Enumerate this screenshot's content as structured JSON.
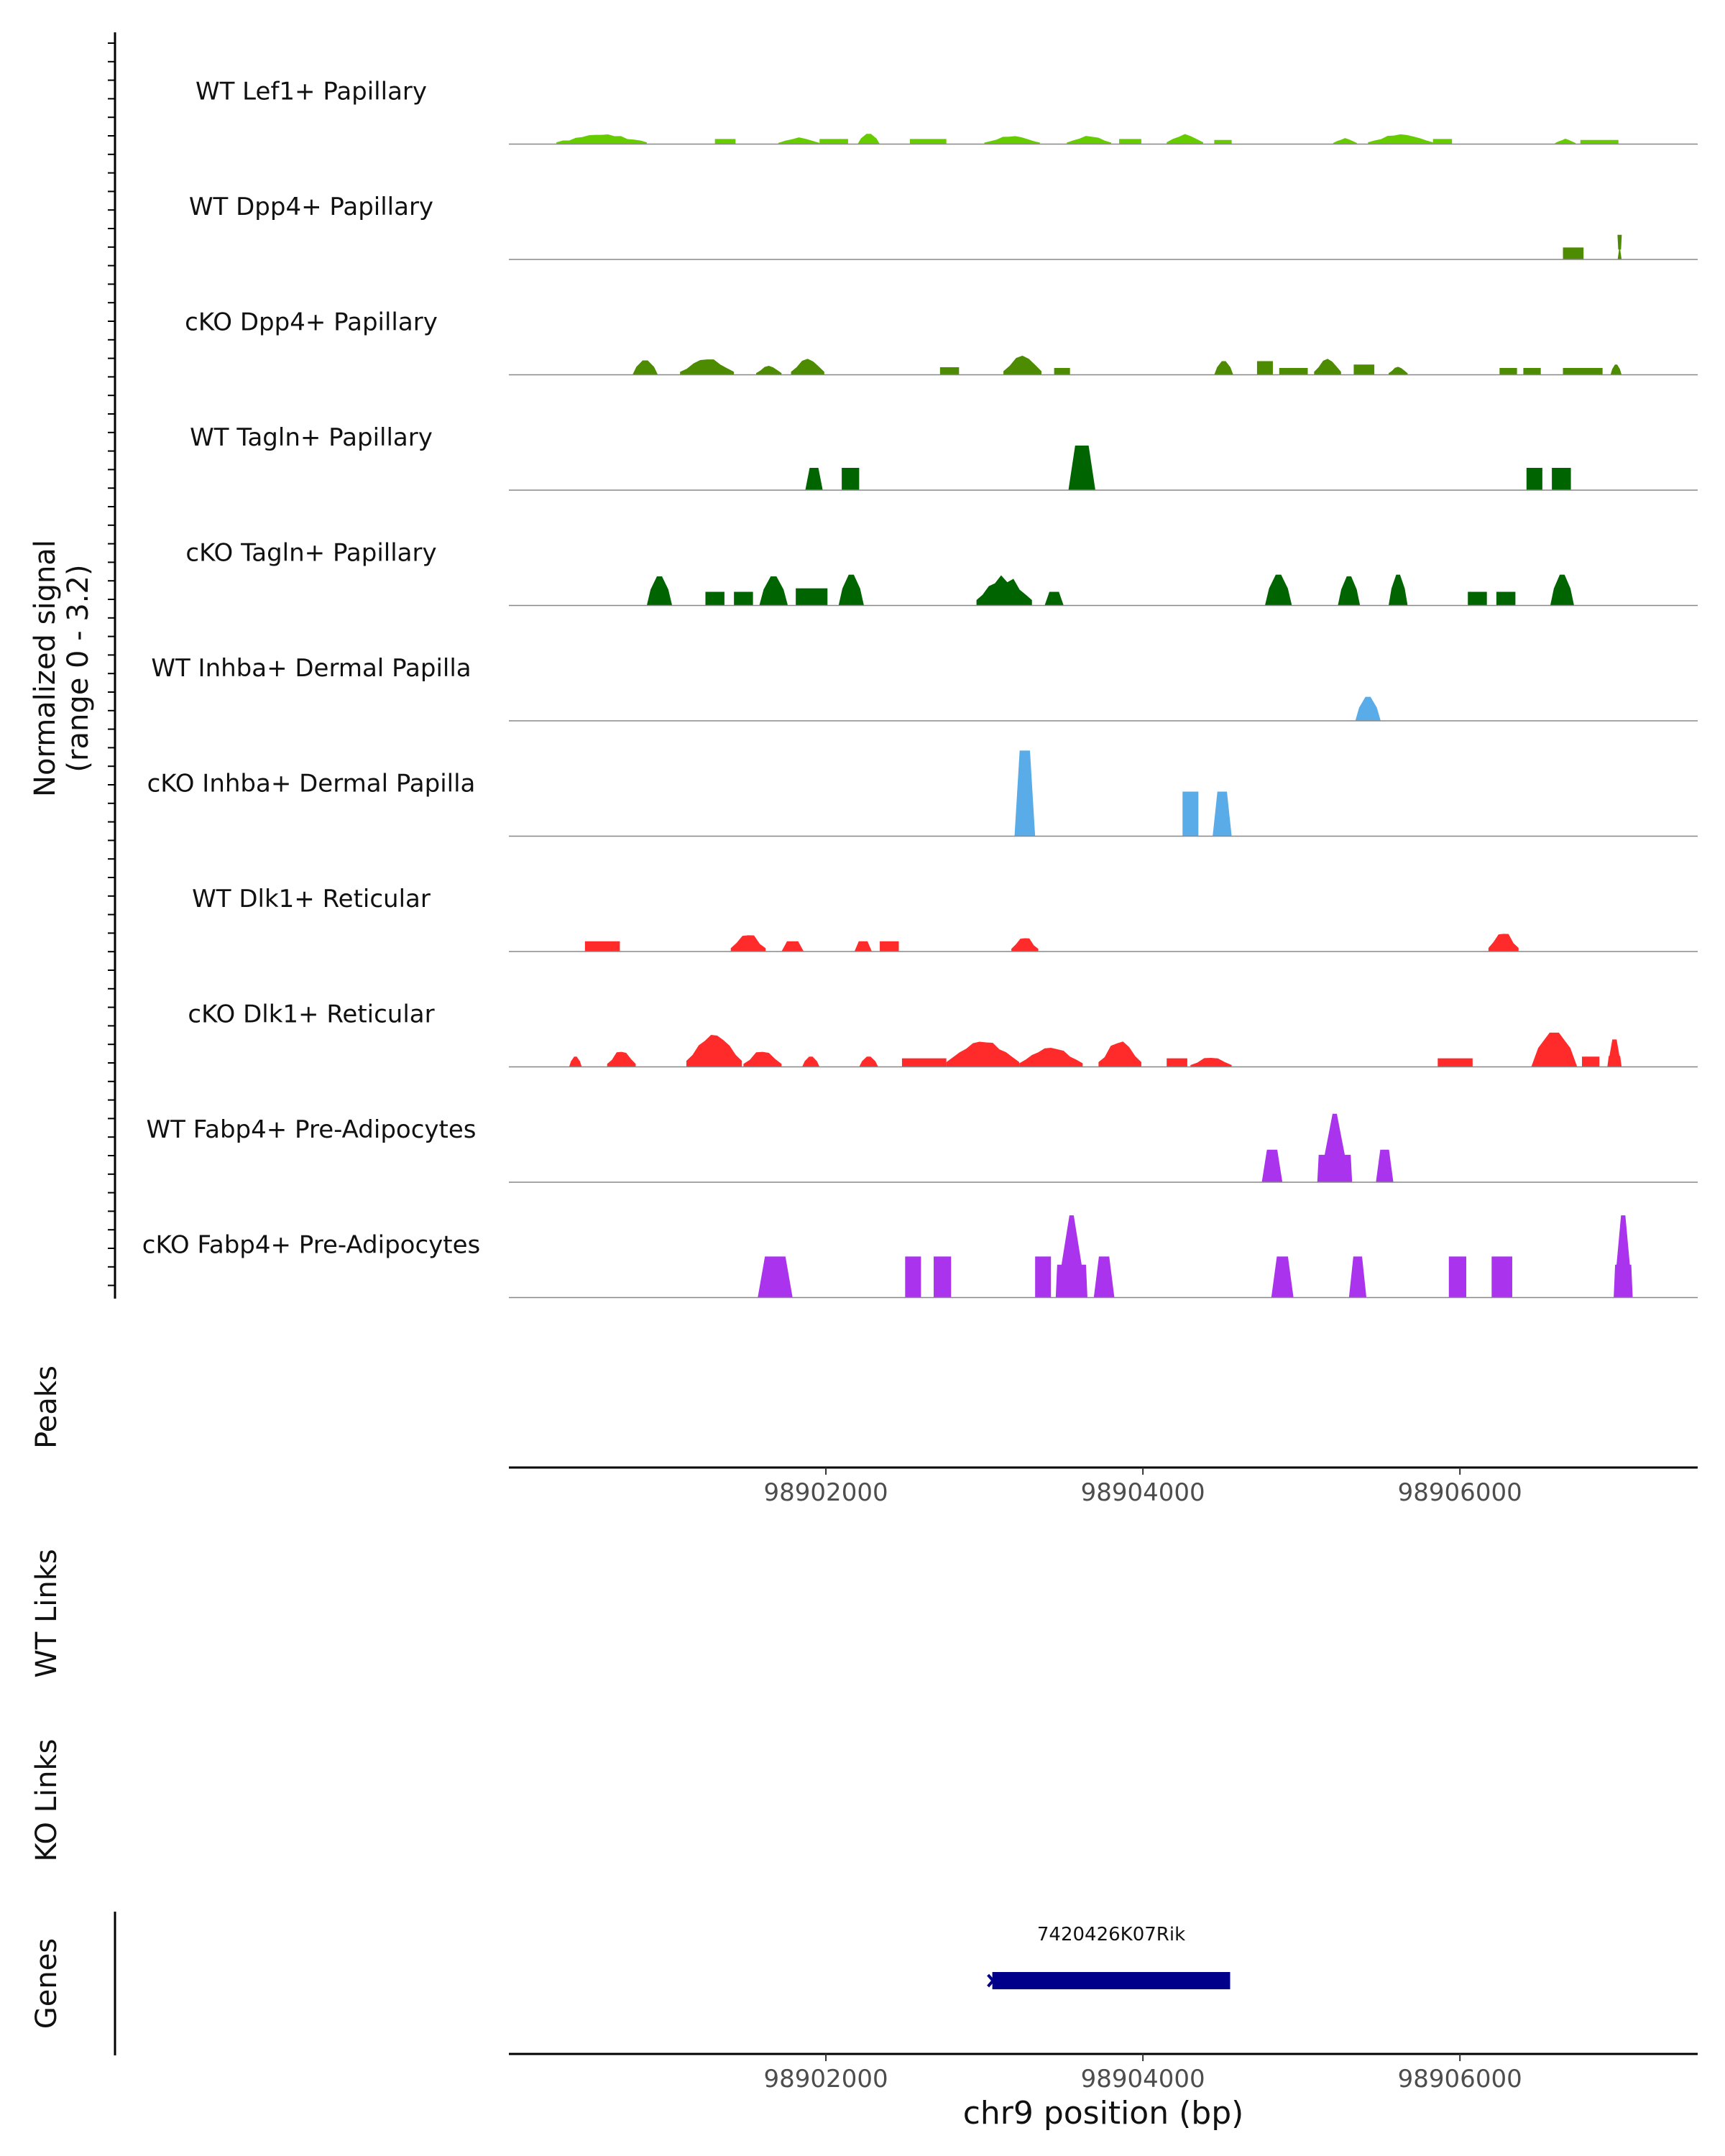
{
  "chart_data": {
    "type": "area",
    "genome": "chr9",
    "x_range": [
      98900000,
      98907500
    ],
    "ylim": [
      0,
      3.2
    ],
    "ylabel_signal": "Normalized signal",
    "ylabel_signal_range": "(range 0 - 3.2)",
    "ylabel_peaks": "Peaks",
    "ylabel_wt_links": "WT Links",
    "ylabel_ko_links": "KO Links",
    "ylabel_genes": "Genes",
    "xlabel": "chr9 position (bp)",
    "x_ticks": [
      98902000,
      98904000,
      98906000
    ],
    "x_tick_labels": [
      "98902000",
      "98904000",
      "98906000"
    ],
    "tracks": [
      {
        "name": "WT Lef1+ Papillary",
        "color": "#66cc00",
        "regions": [
          [
            98900300,
            98900870,
            0.3,
            "mound"
          ],
          [
            98901300,
            98901430,
            0.15,
            "flat"
          ],
          [
            98901700,
            98901960,
            0.2,
            "mound"
          ],
          [
            98901960,
            98902140,
            0.15,
            "flat"
          ],
          [
            98902200,
            98902340,
            0.3,
            "peak"
          ],
          [
            98902530,
            98902760,
            0.15,
            "flat"
          ],
          [
            98903000,
            98903350,
            0.25,
            "mound"
          ],
          [
            98903520,
            98903800,
            0.25,
            "mound"
          ],
          [
            98903850,
            98903990,
            0.15,
            "flat"
          ],
          [
            98904150,
            98904380,
            0.3,
            "mound"
          ],
          [
            98904450,
            98904560,
            0.12,
            "flat"
          ],
          [
            98905200,
            98905350,
            0.18,
            "mound"
          ],
          [
            98905420,
            98905830,
            0.3,
            "mound"
          ],
          [
            98905830,
            98905950,
            0.15,
            "flat"
          ],
          [
            98906600,
            98906730,
            0.16,
            "mound"
          ],
          [
            98906760,
            98907000,
            0.12,
            "flat"
          ]
        ]
      },
      {
        "name": "WT Dpp4+ Papillary",
        "color": "#4d8c00",
        "regions": [
          [
            98906650,
            98906780,
            0.35,
            "flat"
          ],
          [
            98906995,
            98907020,
            0.72,
            "spike"
          ]
        ]
      },
      {
        "name": "cKO Dpp4+ Papillary",
        "color": "#4d8c00",
        "regions": [
          [
            98900780,
            98900940,
            0.42,
            "peak"
          ],
          [
            98901080,
            98901420,
            0.5,
            "mound"
          ],
          [
            98901560,
            98901720,
            0.28,
            "mound"
          ],
          [
            98901780,
            98901990,
            0.5,
            "mound"
          ],
          [
            98902720,
            98902840,
            0.22,
            "flat"
          ],
          [
            98903120,
            98903360,
            0.6,
            "mound"
          ],
          [
            98903440,
            98903540,
            0.2,
            "flat"
          ],
          [
            98904450,
            98904570,
            0.4,
            "peak"
          ],
          [
            98904720,
            98904820,
            0.4,
            "flat"
          ],
          [
            98904860,
            98905040,
            0.2,
            "flat"
          ],
          [
            98905080,
            98905250,
            0.5,
            "mound"
          ],
          [
            98905330,
            98905460,
            0.3,
            "flat"
          ],
          [
            98905550,
            98905670,
            0.25,
            "mound"
          ],
          [
            98906250,
            98906360,
            0.2,
            "flat"
          ],
          [
            98906400,
            98906510,
            0.2,
            "flat"
          ],
          [
            98906650,
            98906900,
            0.2,
            "flat"
          ],
          [
            98906950,
            98907020,
            0.3,
            "peak"
          ]
        ]
      },
      {
        "name": "WT Tagln+ Papillary",
        "color": "#006400",
        "regions": [
          [
            98901870,
            98901980,
            0.65,
            "trap"
          ],
          [
            98902100,
            98902210,
            0.65,
            "flat"
          ],
          [
            98903530,
            98903700,
            1.3,
            "trap"
          ],
          [
            98906420,
            98906520,
            0.65,
            "flat"
          ],
          [
            98906580,
            98906700,
            0.65,
            "flat"
          ]
        ]
      },
      {
        "name": "cKO Tagln+ Papillary",
        "color": "#006400",
        "regions": [
          [
            98900870,
            98901030,
            0.85,
            "peak"
          ],
          [
            98901240,
            98901360,
            0.4,
            "flat"
          ],
          [
            98901420,
            98901540,
            0.4,
            "flat"
          ],
          [
            98901580,
            98901760,
            0.85,
            "peak"
          ],
          [
            98901810,
            98902010,
            0.5,
            "flat"
          ],
          [
            98902080,
            98902240,
            0.9,
            "peak"
          ],
          [
            98902950,
            98903300,
            0.9,
            "mound"
          ],
          [
            98903380,
            98903500,
            0.4,
            "trap"
          ],
          [
            98904770,
            98904940,
            0.9,
            "peak"
          ],
          [
            98905230,
            98905370,
            0.85,
            "peak"
          ],
          [
            98905550,
            98905670,
            0.9,
            "peak"
          ],
          [
            98906050,
            98906170,
            0.4,
            "flat"
          ],
          [
            98906230,
            98906350,
            0.4,
            "flat"
          ],
          [
            98906570,
            98906720,
            0.9,
            "peak"
          ]
        ]
      },
      {
        "name": "WT Inhba+ Dermal Papilla",
        "color": "#5aace8",
        "regions": [
          [
            98905340,
            98905500,
            0.7,
            "peak"
          ]
        ]
      },
      {
        "name": "cKO Inhba+ Dermal Papilla",
        "color": "#5aace8",
        "regions": [
          [
            98903190,
            98903320,
            2.5,
            "trap"
          ],
          [
            98904250,
            98904350,
            1.3,
            "flat"
          ],
          [
            98904440,
            98904560,
            1.3,
            "trap"
          ]
        ]
      },
      {
        "name": "WT Dlk1+ Reticular",
        "color": "#ff2a2a",
        "regions": [
          [
            98900480,
            98900700,
            0.3,
            "flat"
          ],
          [
            98901400,
            98901620,
            0.55,
            "mound"
          ],
          [
            98901720,
            98901860,
            0.3,
            "trap"
          ],
          [
            98902180,
            98902290,
            0.3,
            "trap"
          ],
          [
            98902340,
            98902460,
            0.3,
            "flat"
          ],
          [
            98903170,
            98903340,
            0.45,
            "mound"
          ],
          [
            98906180,
            98906370,
            0.6,
            "mound"
          ]
        ]
      },
      {
        "name": "cKO Dlk1+ Reticular",
        "color": "#ff2a2a",
        "regions": [
          [
            98900380,
            98900460,
            0.3,
            "peak"
          ],
          [
            98900620,
            98900800,
            0.5,
            "mound"
          ],
          [
            98901120,
            98901470,
            1.0,
            "mound"
          ],
          [
            98901480,
            98901720,
            0.5,
            "mound"
          ],
          [
            98901850,
            98901960,
            0.3,
            "peak"
          ],
          [
            98902210,
            98902330,
            0.3,
            "peak"
          ],
          [
            98902480,
            98902760,
            0.25,
            "flat"
          ],
          [
            98902760,
            98903220,
            0.8,
            "mound"
          ],
          [
            98903220,
            98903620,
            0.6,
            "mound"
          ],
          [
            98903720,
            98903990,
            0.8,
            "mound"
          ],
          [
            98904150,
            98904280,
            0.25,
            "flat"
          ],
          [
            98904300,
            98904560,
            0.3,
            "mound"
          ],
          [
            98905860,
            98906080,
            0.25,
            "flat"
          ],
          [
            98906450,
            98906740,
            1.0,
            "peak"
          ],
          [
            98906770,
            98906880,
            0.3,
            "flat"
          ],
          [
            98906930,
            98907020,
            0.8,
            "spike"
          ]
        ]
      },
      {
        "name": "WT Fabp4+ Pre-Adipocytes",
        "color": "#aa33ee",
        "regions": [
          [
            98904750,
            98904880,
            0.95,
            "trap"
          ],
          [
            98905100,
            98905320,
            2.0,
            "spike"
          ],
          [
            98905470,
            98905580,
            0.95,
            "trap"
          ]
        ]
      },
      {
        "name": "cKO Fabp4+ Pre-Adipocytes",
        "color": "#aa33ee",
        "regions": [
          [
            98901570,
            98901790,
            1.2,
            "trap"
          ],
          [
            98902500,
            98902600,
            1.2,
            "flat"
          ],
          [
            98902680,
            98902790,
            1.2,
            "flat"
          ],
          [
            98903320,
            98903420,
            1.2,
            "flat"
          ],
          [
            98903450,
            98903650,
            2.4,
            "spike"
          ],
          [
            98903690,
            98903820,
            1.2,
            "trap"
          ],
          [
            98904810,
            98904950,
            1.2,
            "trap"
          ],
          [
            98905300,
            98905410,
            1.2,
            "trap"
          ],
          [
            98905930,
            98906040,
            1.2,
            "flat"
          ],
          [
            98906200,
            98906330,
            1.2,
            "flat"
          ],
          [
            98906970,
            98907090,
            2.4,
            "spike"
          ]
        ]
      }
    ],
    "genes": [
      {
        "name": "7420426K07Rik",
        "start": 98903050,
        "end": 98904550,
        "strand": "-",
        "color": "#00008b"
      }
    ]
  }
}
